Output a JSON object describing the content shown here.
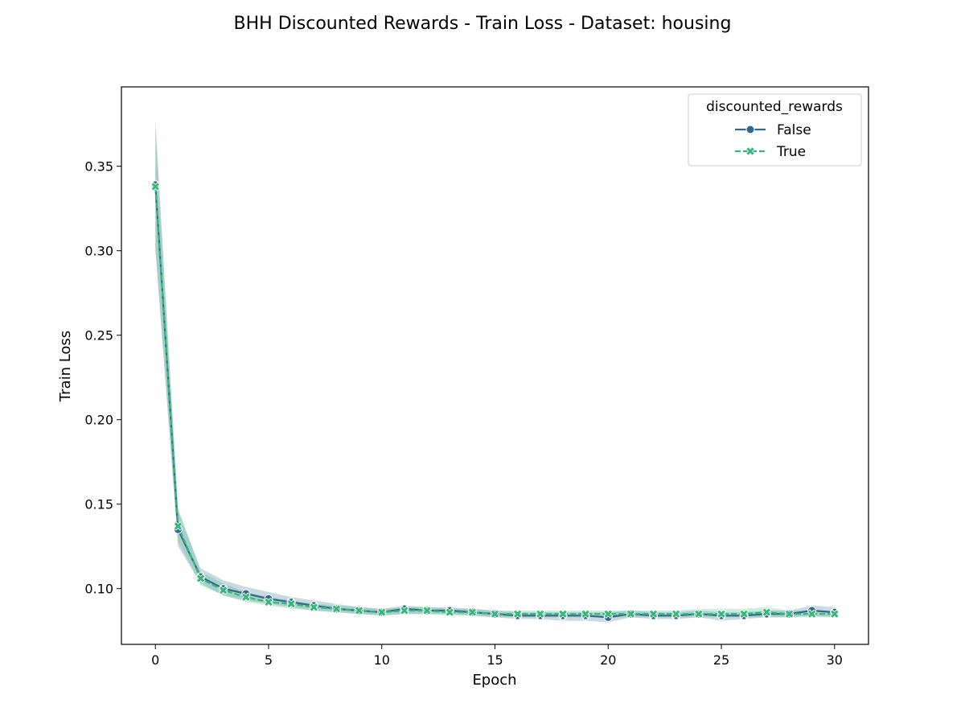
{
  "chart_data": {
    "type": "line",
    "title": "BHH Discounted Rewards - Train Loss - Dataset: housing",
    "xlabel": "Epoch",
    "ylabel": "Train Loss",
    "xlim": [
      -1.5,
      31.5
    ],
    "ylim": [
      0.067,
      0.397
    ],
    "xticks": [
      0,
      5,
      10,
      15,
      20,
      25,
      30
    ],
    "yticks": [
      0.1,
      0.15,
      0.2,
      0.25,
      0.3,
      0.35
    ],
    "x": [
      0,
      1,
      2,
      3,
      4,
      5,
      6,
      7,
      8,
      9,
      10,
      11,
      12,
      13,
      14,
      15,
      16,
      17,
      18,
      19,
      20,
      21,
      22,
      23,
      24,
      25,
      26,
      27,
      28,
      29,
      30
    ],
    "legend": {
      "title": "discounted_rewards",
      "placement": "upper right"
    },
    "grid": false,
    "series": [
      {
        "name": "False",
        "color": "#31688e",
        "marker": "circle",
        "linestyle": "solid",
        "values": [
          0.339,
          0.135,
          0.107,
          0.1,
          0.097,
          0.094,
          0.092,
          0.09,
          0.088,
          0.087,
          0.086,
          0.088,
          0.087,
          0.087,
          0.086,
          0.085,
          0.084,
          0.084,
          0.084,
          0.084,
          0.083,
          0.085,
          0.084,
          0.084,
          0.085,
          0.084,
          0.084,
          0.085,
          0.085,
          0.087,
          0.086
        ],
        "lower": [
          0.3,
          0.125,
          0.103,
          0.096,
          0.093,
          0.091,
          0.089,
          0.087,
          0.086,
          0.085,
          0.084,
          0.085,
          0.085,
          0.085,
          0.084,
          0.083,
          0.082,
          0.082,
          0.081,
          0.081,
          0.08,
          0.083,
          0.082,
          0.082,
          0.083,
          0.081,
          0.082,
          0.083,
          0.083,
          0.084,
          0.083
        ],
        "upper": [
          0.378,
          0.146,
          0.112,
          0.105,
          0.101,
          0.098,
          0.095,
          0.093,
          0.091,
          0.089,
          0.088,
          0.09,
          0.089,
          0.089,
          0.088,
          0.087,
          0.086,
          0.086,
          0.086,
          0.086,
          0.086,
          0.087,
          0.086,
          0.086,
          0.087,
          0.086,
          0.086,
          0.087,
          0.087,
          0.09,
          0.089
        ]
      },
      {
        "name": "True",
        "color": "#35b779",
        "marker": "x",
        "linestyle": "dashed",
        "values": [
          0.338,
          0.137,
          0.106,
          0.099,
          0.095,
          0.092,
          0.091,
          0.089,
          0.088,
          0.087,
          0.086,
          0.087,
          0.087,
          0.086,
          0.086,
          0.085,
          0.085,
          0.085,
          0.085,
          0.085,
          0.085,
          0.085,
          0.085,
          0.085,
          0.085,
          0.085,
          0.085,
          0.086,
          0.085,
          0.085,
          0.085
        ],
        "lower": [
          0.302,
          0.128,
          0.102,
          0.096,
          0.092,
          0.09,
          0.088,
          0.087,
          0.086,
          0.085,
          0.084,
          0.085,
          0.085,
          0.084,
          0.084,
          0.083,
          0.083,
          0.083,
          0.083,
          0.083,
          0.083,
          0.083,
          0.083,
          0.083,
          0.083,
          0.083,
          0.083,
          0.083,
          0.083,
          0.083,
          0.083
        ],
        "upper": [
          0.372,
          0.148,
          0.11,
          0.103,
          0.098,
          0.095,
          0.093,
          0.091,
          0.09,
          0.089,
          0.088,
          0.089,
          0.089,
          0.088,
          0.088,
          0.087,
          0.087,
          0.087,
          0.087,
          0.087,
          0.087,
          0.087,
          0.087,
          0.087,
          0.088,
          0.088,
          0.088,
          0.089,
          0.087,
          0.087,
          0.087
        ]
      }
    ]
  }
}
